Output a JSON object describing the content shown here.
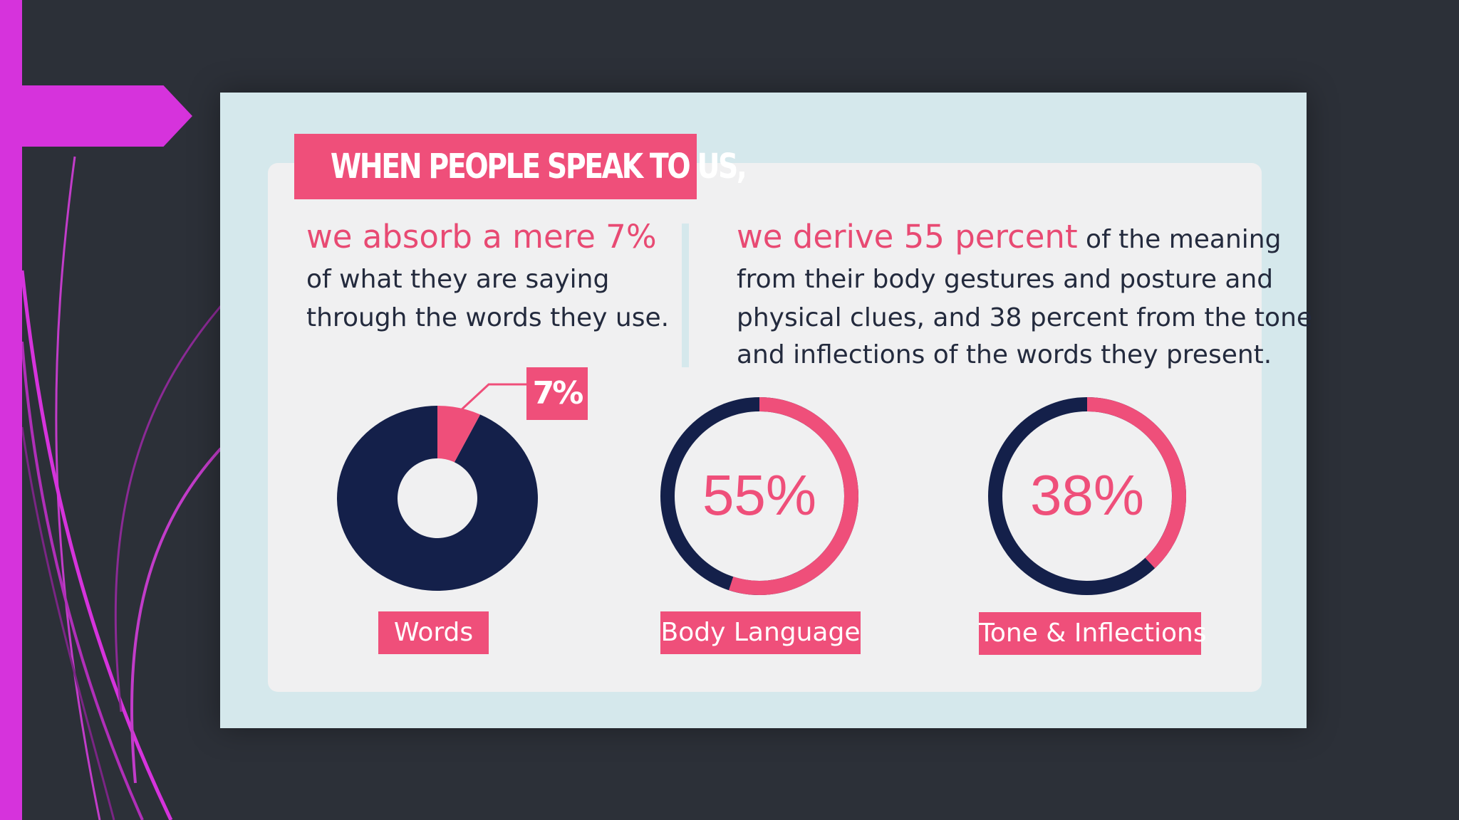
{
  "slide": {
    "colors": {
      "background": "#2c3038",
      "accent_magenta": "#d633dc",
      "card_outer": "#d5e8ec",
      "card_inner": "#f0f0f1",
      "pink": "#ef4f7a",
      "navy": "#14204a"
    }
  },
  "heading": "WHEN PEOPLE SPEAK TO US,",
  "left_block": {
    "highlight": "we absorb a mere 7%",
    "line1": "of what they are saying",
    "line2": "through the words they use."
  },
  "right_block": {
    "highlight": "we derive 55 percent",
    "line1_rest": " of the meaning",
    "line2": "from their body gestures and posture and",
    "line3": "physical clues, and 38 percent from the tone",
    "line4": "and inflections of the words they present."
  },
  "chart_data": [
    {
      "type": "pie",
      "style": "donut",
      "label": "Words",
      "callout": "7%",
      "values": [
        7,
        93
      ]
    },
    {
      "type": "pie",
      "style": "ring",
      "label": "Body Language",
      "center_text": "55%",
      "values": [
        55,
        45
      ]
    },
    {
      "type": "pie",
      "style": "ring",
      "label": "Tone & Inflections",
      "center_text": "38%",
      "values": [
        38,
        62
      ]
    }
  ]
}
